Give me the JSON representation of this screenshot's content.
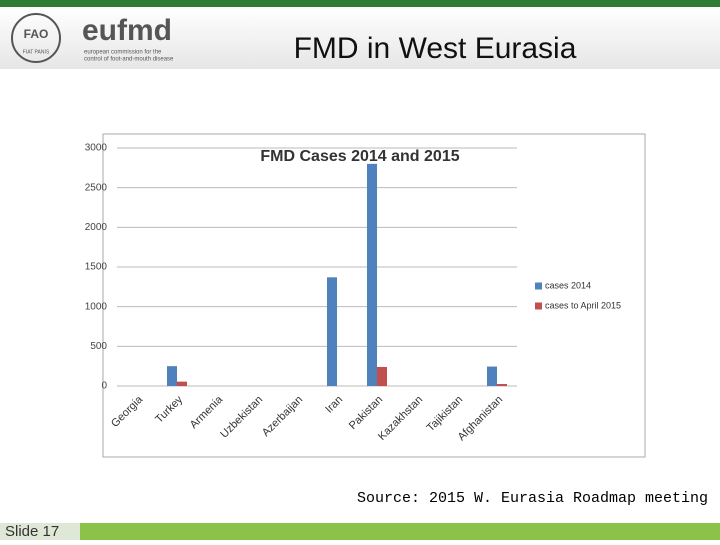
{
  "slide": {
    "logo_fao": "FAO",
    "logo_fao_motto": "FIAT PANIS",
    "logo_eufmd": "eufmd",
    "logo_eufmd_caption_1": "european commission for the",
    "logo_eufmd_caption_2": "control of foot-and-mouth disease",
    "title": "FMD in West Eurasia",
    "source": "Source: 2015 W. Eurasia Roadmap meeting",
    "slide_number": "Slide 17"
  },
  "chart_data": {
    "type": "bar",
    "title": "FMD Cases 2014 and 2015",
    "categories": [
      "Georgia",
      "Turkey",
      "Armenia",
      "Uzbekistan",
      "Azerbaijan",
      "Iran",
      "Pakistan",
      "Kazakhstan",
      "Tajikistan",
      "Afghanistan"
    ],
    "series": [
      {
        "name": "cases 2014",
        "color": "#4f81bd",
        "values": [
          0,
          250,
          0,
          0,
          0,
          1370,
          2800,
          0,
          0,
          245
        ]
      },
      {
        "name": "cases to April 2015",
        "color": "#c0504d",
        "values": [
          0,
          55,
          0,
          0,
          0,
          0,
          240,
          0,
          0,
          25
        ]
      }
    ],
    "ylim": [
      0,
      3000
    ],
    "yticks": [
      0,
      500,
      1000,
      1500,
      2000,
      2500,
      3000
    ],
    "grid": true,
    "legend": "right"
  }
}
